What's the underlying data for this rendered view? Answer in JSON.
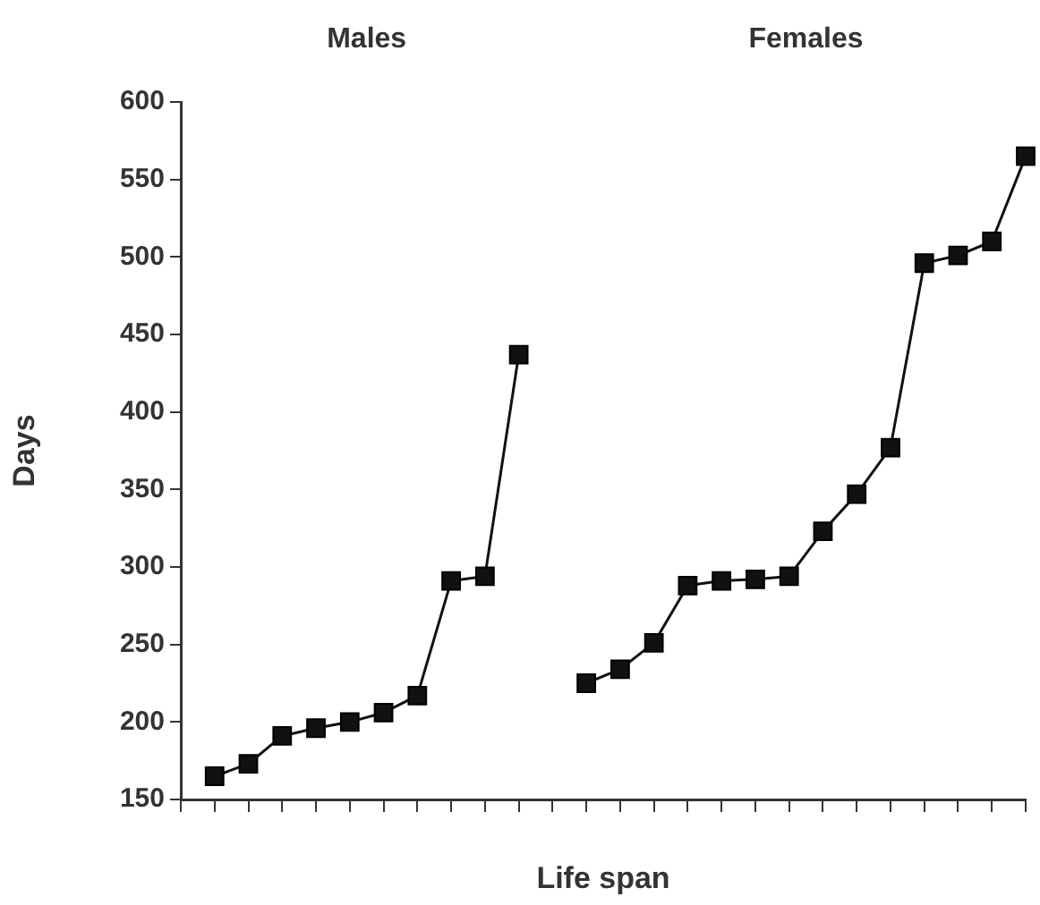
{
  "chart_data": {
    "type": "line",
    "xlabel": "Life span",
    "ylabel": "Days",
    "categories": [
      null,
      null,
      null,
      null,
      null,
      null,
      null,
      null,
      null,
      null,
      null,
      null,
      null,
      null,
      null,
      null,
      null,
      null,
      null,
      null,
      null,
      null,
      null,
      null,
      null,
      null
    ],
    "series": [
      {
        "color": "#111111",
        "values": [
          null,
          165,
          173,
          191,
          196,
          200,
          206,
          217,
          291,
          294,
          437,
          null,
          null,
          null,
          null,
          null,
          null,
          null,
          null,
          null,
          null,
          null,
          null,
          null,
          null,
          null
        ]
      },
      {
        "color": "#111111",
        "values": [
          null,
          null,
          null,
          null,
          null,
          null,
          null,
          null,
          null,
          null,
          null,
          null,
          225,
          234,
          251,
          288,
          291,
          292,
          294,
          323,
          347,
          377,
          496,
          501,
          510,
          565
        ]
      }
    ],
    "ylim": [
      150,
      600
    ],
    "yticks": [
      150,
      200,
      250,
      300,
      350,
      400,
      450,
      500,
      550,
      600
    ],
    "annotations": [
      "Males",
      "Females"
    ],
    "grid": false,
    "legend": false,
    "tick_labels": "y",
    "marker": "square",
    "line_style": "solid"
  }
}
